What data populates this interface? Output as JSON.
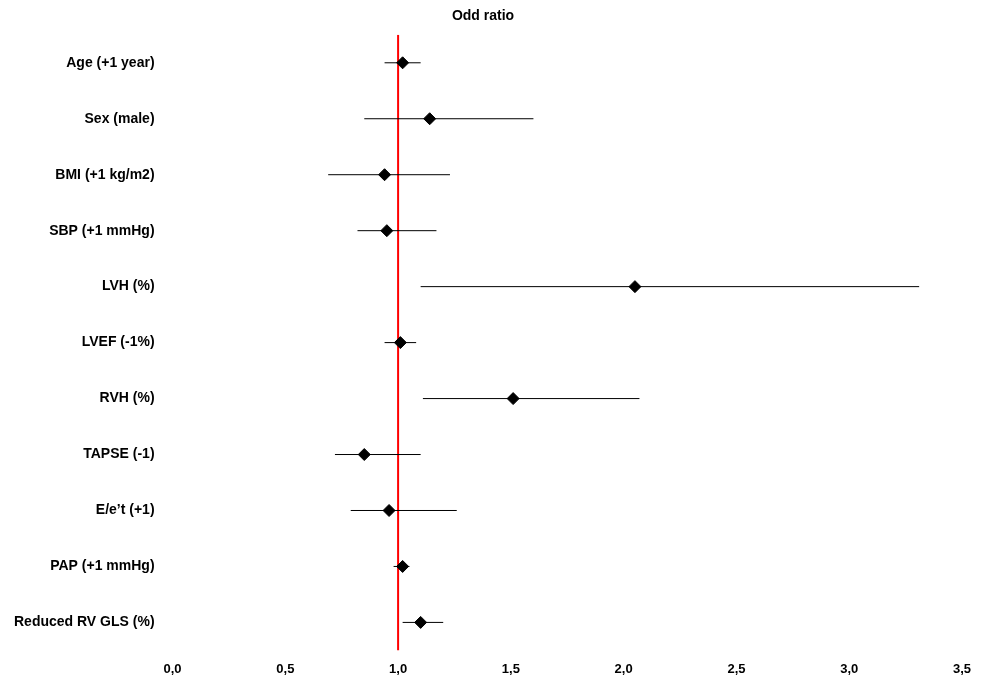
{
  "chart_data": {
    "type": "forest",
    "title": "Odd ratio",
    "orientation": "horizontal",
    "categories": [
      "Age (+1 year)",
      "Sex (male)",
      "BMI (+1 kg/m2)",
      "SBP (+1 mmHg)",
      "LVH (%)",
      "LVEF (-1%)",
      "RVH (%)",
      "TAPSE (-1)",
      "E/e’t (+1)",
      "PAP (+1 mmHg)",
      "Reduced RV GLS (%)"
    ],
    "values": [
      1.02,
      1.14,
      0.94,
      0.95,
      2.05,
      1.01,
      1.51,
      0.85,
      0.96,
      1.02,
      1.1
    ],
    "ci_low": [
      0.94,
      0.85,
      0.69,
      0.82,
      1.1,
      0.94,
      1.11,
      0.72,
      0.79,
      0.98,
      1.02
    ],
    "ci_high": [
      1.1,
      1.6,
      1.23,
      1.17,
      3.31,
      1.08,
      2.07,
      1.1,
      1.26,
      1.05,
      1.2
    ],
    "color": "#000000",
    "marker": "diamond",
    "reference_line": {
      "value": 1.0,
      "color": "#ff0000"
    },
    "xlim": [
      0,
      3.5
    ],
    "xticks": [
      {
        "value": 0,
        "label": "0,0"
      },
      {
        "value": 0.5,
        "label": "0,5"
      },
      {
        "value": 1,
        "label": "1,0"
      },
      {
        "value": 1.5,
        "label": "1,5"
      },
      {
        "value": 2,
        "label": "2,0"
      },
      {
        "value": 2.5,
        "label": "2,5"
      },
      {
        "value": 3,
        "label": "3,0"
      },
      {
        "value": 3.5,
        "label": "3,5"
      }
    ],
    "grid": false
  }
}
